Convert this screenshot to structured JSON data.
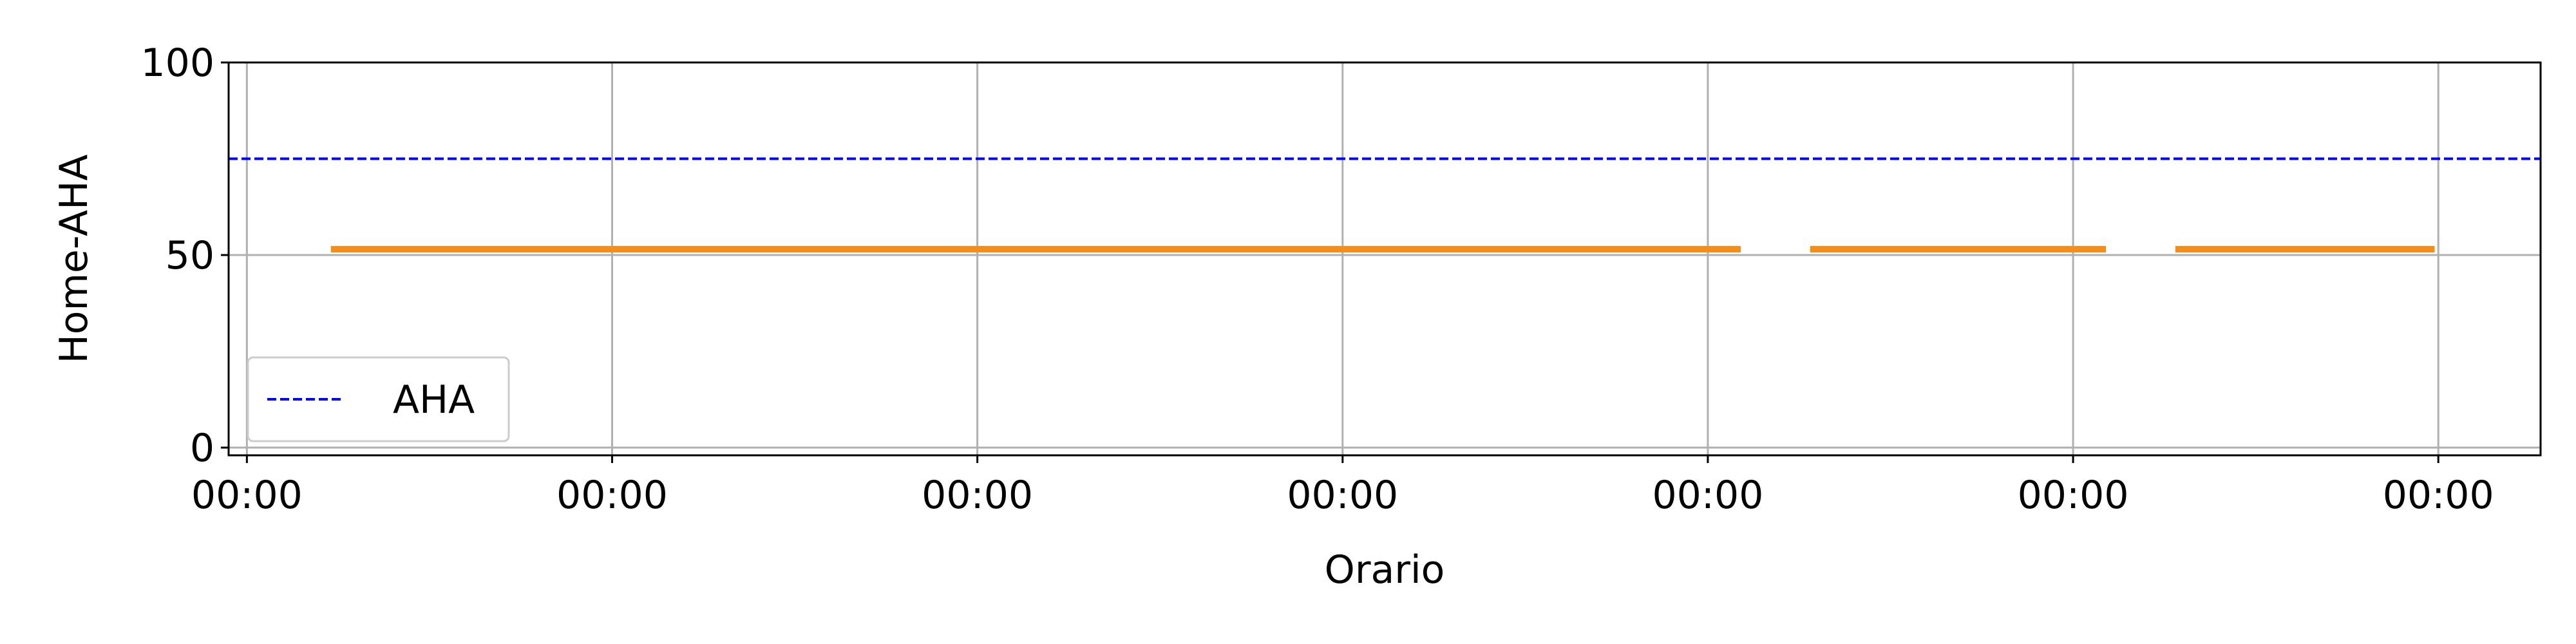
{
  "chart_data": {
    "type": "line",
    "title": "",
    "xlabel": "Orario",
    "ylabel": "Home-AHA",
    "x_tick_labels": [
      "00:00",
      "00:00",
      "00:00",
      "00:00",
      "00:00",
      "00:00",
      "00:00"
    ],
    "x_ticks": [
      0,
      1,
      2,
      3,
      4,
      5,
      6
    ],
    "xlim": [
      -0.05,
      6.28
    ],
    "ylim": [
      -2,
      100
    ],
    "y_ticks": [
      0,
      50,
      100
    ],
    "grid": true,
    "legend": {
      "placement": "lower-left",
      "entries": [
        "AHA"
      ]
    },
    "series": [
      {
        "name": "AHA",
        "style": "dashed",
        "color": "#0000ff",
        "x": [
          -0.05,
          6.28
        ],
        "y": [
          75,
          75
        ]
      },
      {
        "style": "solid",
        "color": "#f28e1c",
        "segments": [
          {
            "x": [
              0.23,
              4.09
            ],
            "y": [
              51.5,
              51.5
            ]
          },
          {
            "x": [
              4.28,
              5.09
            ],
            "y": [
              51.5,
              51.5
            ]
          },
          {
            "x": [
              5.28,
              5.99
            ],
            "y": [
              51.5,
              51.5
            ]
          }
        ]
      }
    ]
  }
}
